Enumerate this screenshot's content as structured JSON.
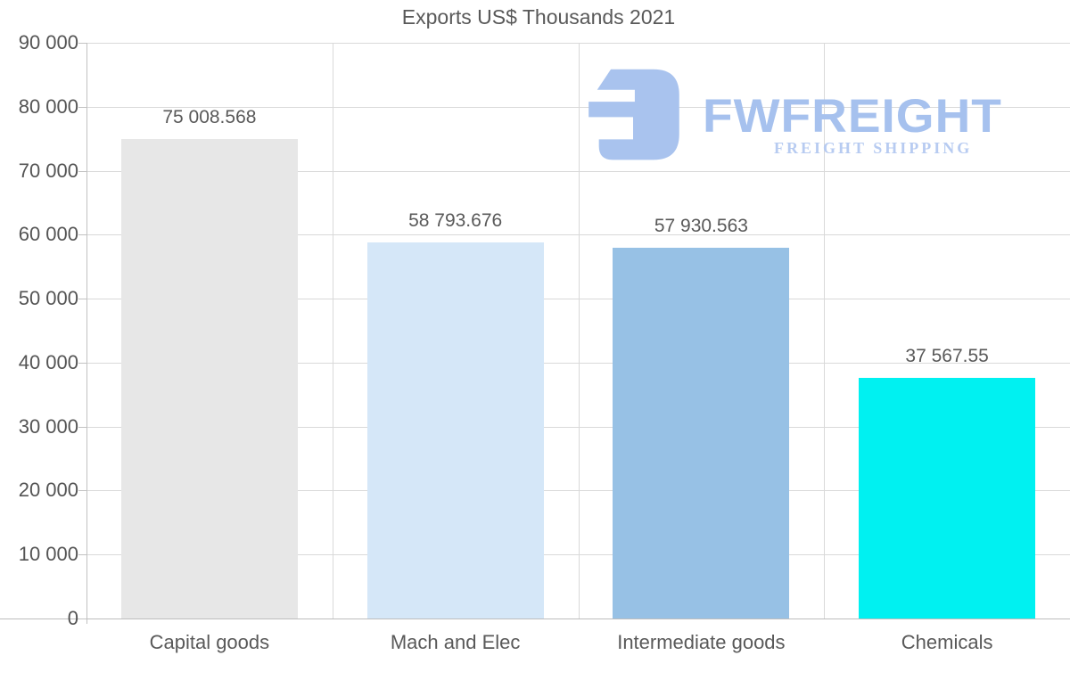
{
  "page": {
    "background": "#ffffff"
  },
  "chart_data": {
    "type": "bar",
    "title": "Exports US$ Thousands 2021",
    "categories": [
      "Capital goods",
      "Mach and Elec",
      "Intermediate goods",
      "Chemicals"
    ],
    "values": [
      75008.568,
      58793.676,
      57930.563,
      37567.55
    ],
    "value_labels": [
      "75 008.568",
      "58 793.676",
      "57 930.563",
      "37 567.55"
    ],
    "bar_colors": [
      "#e7e7e7",
      "#d5e7f8",
      "#97c1e5",
      "#00f1f1"
    ],
    "xlabel": "",
    "ylabel": "",
    "ylim": [
      0,
      90000
    ],
    "ytick_step": 10000,
    "ytick_labels": [
      "0",
      "10 000",
      "20 000",
      "30 000",
      "40 000",
      "50 000",
      "60 000",
      "70 000",
      "80 000",
      "90 000"
    ],
    "grid": true,
    "vertical_category_gridlines": true,
    "legend_position": "none"
  },
  "watermark": {
    "brand": "FWFREIGHT",
    "tagline": "FREIGHT SHIPPING",
    "mark_color": "#a9c3ee",
    "brand_color": "#a6c1ee",
    "tagline_color": "#b7cbf1"
  },
  "colors": {
    "grid": "#d9d9d9",
    "axis": "#bdbdbd",
    "text": "#595959"
  }
}
